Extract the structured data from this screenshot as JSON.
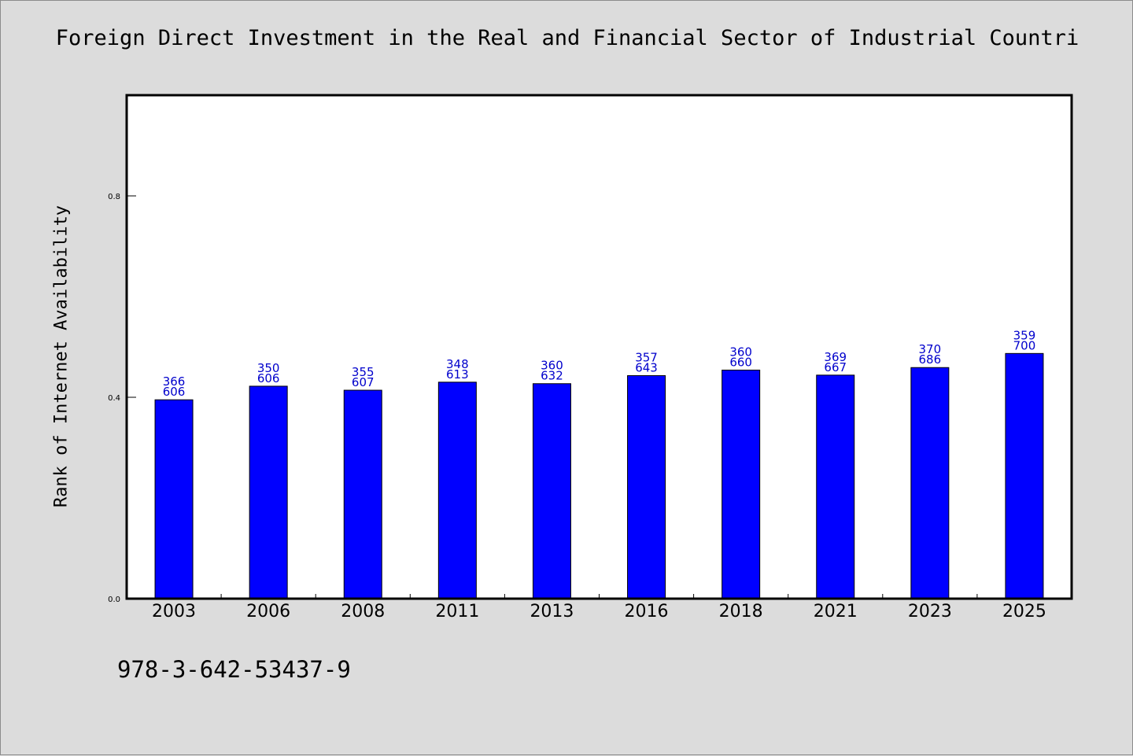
{
  "chart_data": {
    "type": "bar",
    "title": "Foreign Direct Investment in the Real and Financial Sector of Industrial Countri",
    "xlabel": "",
    "ylabel": "Rank of Internet Availability",
    "categories": [
      "2003",
      "2006",
      "2008",
      "2011",
      "2013",
      "2016",
      "2018",
      "2021",
      "2023",
      "2025"
    ],
    "values": [
      0.395,
      0.422,
      0.414,
      0.43,
      0.427,
      0.443,
      0.454,
      0.444,
      0.459,
      0.487
    ],
    "ylim": [
      0,
      1.0
    ],
    "yticks": [
      "0.0",
      "0.4",
      "0.8"
    ],
    "bar_labels": [
      [
        "366",
        "606"
      ],
      [
        "350",
        "606"
      ],
      [
        "355",
        "607"
      ],
      [
        "348",
        "613"
      ],
      [
        "360",
        "632"
      ],
      [
        "357",
        "643"
      ],
      [
        "360",
        "660"
      ],
      [
        "369",
        "667"
      ],
      [
        "370",
        "686"
      ],
      [
        "359",
        "700"
      ]
    ],
    "bar_color": "#0000ff",
    "label_color": "#0000cc",
    "background_color": "#dcdcdc",
    "plot_background": "#ffffff",
    "grid": false,
    "legend": "none"
  },
  "footer": {
    "code": "978-3-642-53437-9"
  }
}
